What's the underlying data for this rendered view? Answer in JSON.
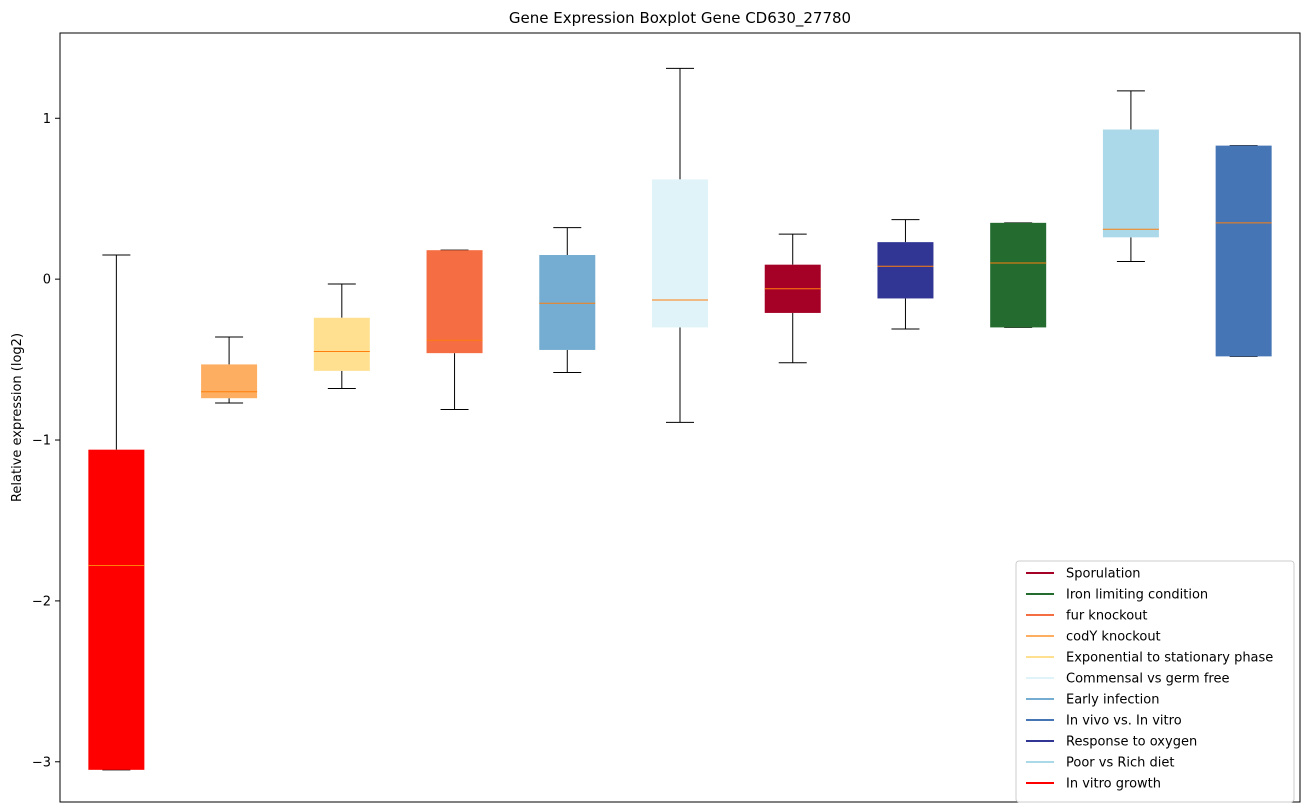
{
  "chart_data": {
    "type": "box",
    "title": "Gene Expression Boxplot Gene CD630_27780",
    "xlabel": "",
    "ylabel": "Relative expression (log2)",
    "ylim": [
      -3.25,
      1.53
    ],
    "yticks": [
      -3,
      -2,
      -1,
      0,
      1
    ],
    "median_color": "#ff7f0e",
    "whisker_color": "#000000",
    "boxes": [
      {
        "name": "In vitro growth",
        "color": "#ff0000",
        "whislo": -3.05,
        "q1": -3.05,
        "med": -1.78,
        "q3": -1.06,
        "whishi": 0.15
      },
      {
        "name": "codY knockout",
        "color": "#fdae61",
        "whislo": -0.77,
        "q1": -0.74,
        "med": -0.7,
        "q3": -0.53,
        "whishi": -0.36
      },
      {
        "name": "Exponential to stationary phase",
        "color": "#fee090",
        "whislo": -0.68,
        "q1": -0.57,
        "med": -0.45,
        "q3": -0.24,
        "whishi": -0.03
      },
      {
        "name": "fur knockout",
        "color": "#f46d43",
        "whislo": -0.81,
        "q1": -0.46,
        "med": -0.38,
        "q3": 0.18,
        "whishi": 0.18
      },
      {
        "name": "Early infection",
        "color": "#74add1",
        "whislo": -0.58,
        "q1": -0.44,
        "med": -0.15,
        "q3": 0.15,
        "whishi": 0.32
      },
      {
        "name": "Commensal vs germ free",
        "color": "#e0f3f8",
        "whislo": -0.89,
        "q1": -0.3,
        "med": -0.13,
        "q3": 0.62,
        "whishi": 1.31
      },
      {
        "name": "Sporulation",
        "color": "#a50026",
        "whislo": -0.52,
        "q1": -0.21,
        "med": -0.06,
        "q3": 0.09,
        "whishi": 0.28
      },
      {
        "name": "Response to oxygen",
        "color": "#313695",
        "whislo": -0.31,
        "q1": -0.12,
        "med": 0.08,
        "q3": 0.23,
        "whishi": 0.37
      },
      {
        "name": "Iron limiting condition",
        "color": "#236b2e",
        "whislo": -0.3,
        "q1": -0.3,
        "med": 0.1,
        "q3": 0.35,
        "whishi": 0.35
      },
      {
        "name": "Poor vs Rich diet",
        "color": "#abd9e9",
        "whislo": 0.11,
        "q1": 0.26,
        "med": 0.31,
        "q3": 0.93,
        "whishi": 1.17
      },
      {
        "name": "In vivo vs. In vitro",
        "color": "#4575b4",
        "whislo": -0.48,
        "q1": -0.48,
        "med": 0.35,
        "q3": 0.83,
        "whishi": 0.83
      }
    ],
    "legend": {
      "placement": "bottom-right",
      "entries": [
        {
          "label": "Sporulation",
          "color": "#a50026"
        },
        {
          "label": "Iron limiting condition",
          "color": "#236b2e"
        },
        {
          "label": "fur knockout",
          "color": "#f46d43"
        },
        {
          "label": "codY knockout",
          "color": "#fdae61"
        },
        {
          "label": "Exponential to stationary phase",
          "color": "#fee090"
        },
        {
          "label": "Commensal vs germ free",
          "color": "#e0f3f8"
        },
        {
          "label": "Early infection",
          "color": "#74add1"
        },
        {
          "label": "In vivo vs. In vitro",
          "color": "#4575b4"
        },
        {
          "label": "Response to oxygen",
          "color": "#313695"
        },
        {
          "label": "Poor vs Rich diet",
          "color": "#abd9e9"
        },
        {
          "label": "In vitro growth",
          "color": "#ff0000"
        }
      ]
    }
  }
}
